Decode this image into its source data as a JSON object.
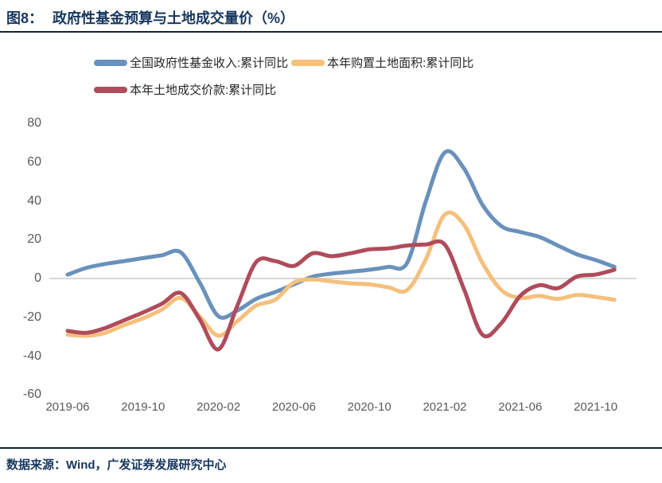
{
  "header": {
    "figure_label": "图8：",
    "title": "政府性基金预算与土地成交量价（%）"
  },
  "footer": {
    "source": "数据来源：Wind，广发证券发展研究中心"
  },
  "colors": {
    "navy": "#17375E",
    "axis_text": "#595959",
    "zero_line": "#D9D9D9",
    "blue": "#6991BB",
    "orange": "#F4C07C",
    "red": "#AF4C5B"
  },
  "chart_data": {
    "type": "line",
    "title": "政府性基金预算与土地成交量价（%）",
    "x": [
      "2019-06",
      "2019-07",
      "2019-08",
      "2019-09",
      "2019-10",
      "2019-11",
      "2019-12",
      "2020-01",
      "2020-02",
      "2020-03",
      "2020-04",
      "2020-05",
      "2020-06",
      "2020-07",
      "2020-08",
      "2020-09",
      "2020-10",
      "2020-11",
      "2020-12",
      "2021-01",
      "2021-02",
      "2021-03",
      "2021-04",
      "2021-05",
      "2021-06",
      "2021-07",
      "2021-08",
      "2021-09",
      "2021-10",
      "2021-11"
    ],
    "series": [
      {
        "name": "全国政府性基金收入:累计同比",
        "color_key": "blue",
        "values": [
          2,
          5.5,
          7.5,
          9,
          10.5,
          12,
          13.5,
          -2,
          -19.5,
          -16.5,
          -10.5,
          -7,
          -3,
          1,
          2.5,
          3.5,
          4.5,
          6,
          8,
          40,
          65,
          57,
          38,
          27,
          24,
          21.5,
          17,
          12.5,
          9.5,
          6
        ]
      },
      {
        "name": "本年购置土地面积:累计同比",
        "color_key": "orange",
        "values": [
          -29,
          -29.5,
          -28,
          -24,
          -20.5,
          -16,
          -10,
          -19.5,
          -29.5,
          -22,
          -14,
          -11,
          -2,
          -0.5,
          -1.5,
          -2.5,
          -3,
          -4.5,
          -6,
          10,
          33,
          28,
          8,
          -6,
          -10,
          -9,
          -10.5,
          -8.5,
          -9.5,
          -11
        ]
      },
      {
        "name": "本年土地成交价款:累计同比",
        "color_key": "red",
        "values": [
          -27,
          -28,
          -25.5,
          -21.5,
          -17.5,
          -13,
          -7.5,
          -21,
          -36.5,
          -14,
          8.5,
          9,
          6.5,
          13,
          11.5,
          13,
          15,
          15.5,
          17,
          17.5,
          17.5,
          -5,
          -29,
          -23,
          -9,
          -3.5,
          -5,
          1,
          2,
          4.5
        ]
      }
    ],
    "y_ticks": [
      80,
      60,
      40,
      20,
      0,
      -20,
      -40,
      -60
    ],
    "x_tick_labels": [
      "2019-06",
      "2019-10",
      "2020-02",
      "2020-06",
      "2020-10",
      "2021-02",
      "2021-06",
      "2021-10"
    ],
    "ylim": [
      -60,
      80
    ],
    "grid": "zero-line-only",
    "legend_position": "top"
  }
}
